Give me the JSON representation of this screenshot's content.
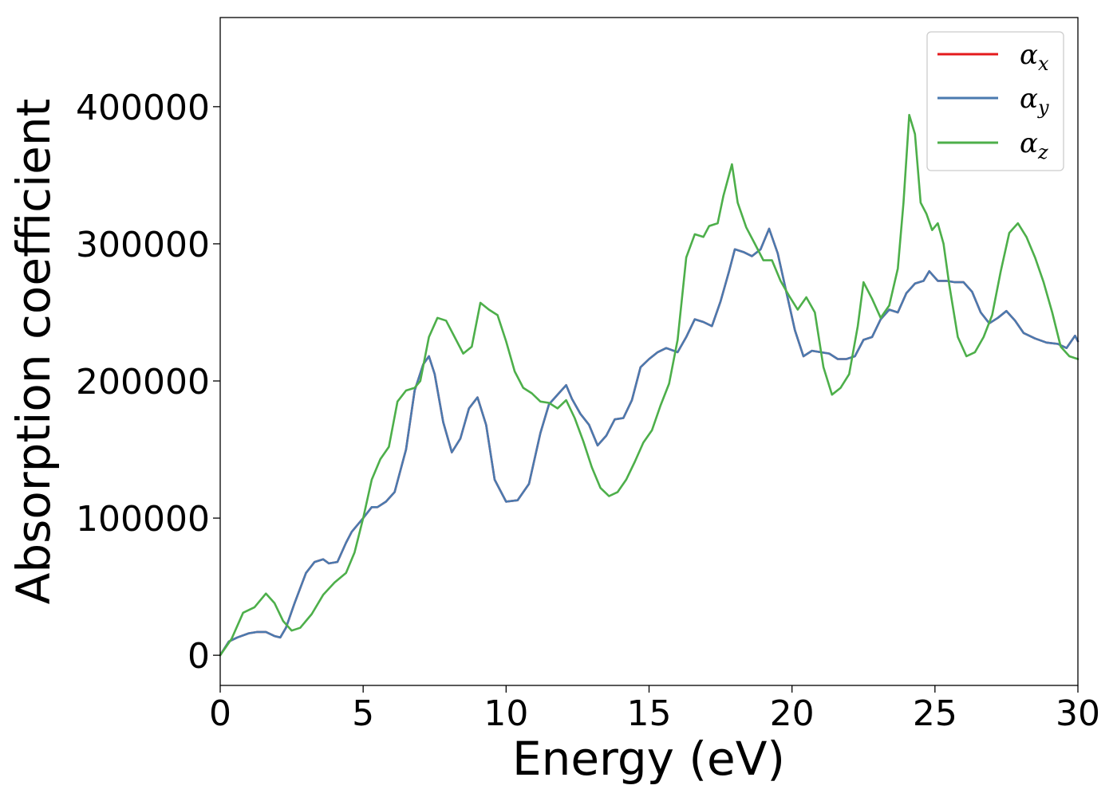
{
  "chart_data": {
    "type": "line",
    "xlabel": "Energy (eV)",
    "ylabel": "Absorption coefficient",
    "xlim": [
      0,
      30
    ],
    "ylim": [
      -22000,
      465000
    ],
    "xticks": [
      0,
      5,
      10,
      15,
      20,
      25,
      30
    ],
    "xtick_labels": [
      "0",
      "5",
      "10",
      "15",
      "20",
      "25",
      "30"
    ],
    "yticks": [
      0,
      100000,
      200000,
      300000,
      400000
    ],
    "ytick_labels": [
      "0",
      "100000",
      "200000",
      "300000",
      "400000"
    ],
    "grid": false,
    "legend_position": "top-right",
    "legend": [
      {
        "symbol": "α",
        "subscript": "x",
        "color": "#e41a1c"
      },
      {
        "symbol": "α",
        "subscript": "y",
        "color": "#4a7aaf"
      },
      {
        "symbol": "α",
        "subscript": "z",
        "color": "#4daf4a"
      }
    ],
    "series": [
      {
        "color": "#e41a1c",
        "x": [
          0,
          0.3,
          0.6,
          1.0,
          1.3,
          1.6,
          1.9,
          2.1,
          2.3,
          2.6,
          3.0,
          3.3,
          3.6,
          3.8,
          4.1,
          4.4,
          4.6,
          5.0,
          5.3,
          5.5,
          5.8,
          6.1,
          6.5,
          6.8,
          7.1,
          7.3,
          7.5,
          7.8,
          8.1,
          8.4,
          8.7,
          9.0,
          9.3,
          9.6,
          10.0,
          10.4,
          10.8,
          11.2,
          11.5,
          11.8,
          12.1,
          12.3,
          12.6,
          12.9,
          13.2,
          13.5,
          13.8,
          14.1,
          14.4,
          14.7,
          15.0,
          15.3,
          15.6,
          16.0,
          16.3,
          16.6,
          16.9,
          17.2,
          17.5,
          17.8,
          18.0,
          18.3,
          18.6,
          18.9,
          19.2,
          19.5,
          19.8,
          20.1,
          20.4,
          20.7,
          21.0,
          21.3,
          21.6,
          21.9,
          22.2,
          22.5,
          22.8,
          23.1,
          23.4,
          23.7,
          24.0,
          24.3,
          24.6,
          24.8,
          25.1,
          25.4,
          25.7,
          26.0,
          26.3,
          26.6,
          26.9,
          27.2,
          27.5,
          27.8,
          28.1,
          28.5,
          28.9,
          29.3,
          29.6,
          29.9,
          30.0
        ],
        "y": [
          0,
          10000,
          13000,
          16000,
          17000,
          17000,
          14000,
          13000,
          20000,
          38000,
          60000,
          68000,
          70000,
          67000,
          68000,
          82000,
          90000,
          100000,
          108000,
          108000,
          112000,
          119000,
          150000,
          193000,
          212000,
          218000,
          205000,
          170000,
          148000,
          158000,
          180000,
          188000,
          168000,
          128000,
          112000,
          113000,
          125000,
          162000,
          183000,
          190000,
          197000,
          187000,
          176000,
          168000,
          153000,
          160000,
          172000,
          173000,
          186000,
          210000,
          216000,
          221000,
          224000,
          221000,
          232000,
          245000,
          243000,
          240000,
          258000,
          280000,
          296000,
          294000,
          291000,
          296000,
          311000,
          293000,
          265000,
          237000,
          218000,
          222000,
          221000,
          220000,
          216000,
          216000,
          218000,
          230000,
          232000,
          245000,
          252000,
          250000,
          264000,
          271000,
          273000,
          280000,
          273000,
          273000,
          272000,
          272000,
          265000,
          250000,
          242000,
          246000,
          251000,
          244000,
          235000,
          231000,
          228000,
          227000,
          224000,
          233000,
          229000
        ]
      },
      {
        "color": "#4a7aaf",
        "x": [
          0,
          0.3,
          0.6,
          1.0,
          1.3,
          1.6,
          1.9,
          2.1,
          2.3,
          2.6,
          3.0,
          3.3,
          3.6,
          3.8,
          4.1,
          4.4,
          4.6,
          5.0,
          5.3,
          5.5,
          5.8,
          6.1,
          6.5,
          6.8,
          7.1,
          7.3,
          7.5,
          7.8,
          8.1,
          8.4,
          8.7,
          9.0,
          9.3,
          9.6,
          10.0,
          10.4,
          10.8,
          11.2,
          11.5,
          11.8,
          12.1,
          12.3,
          12.6,
          12.9,
          13.2,
          13.5,
          13.8,
          14.1,
          14.4,
          14.7,
          15.0,
          15.3,
          15.6,
          16.0,
          16.3,
          16.6,
          16.9,
          17.2,
          17.5,
          17.8,
          18.0,
          18.3,
          18.6,
          18.9,
          19.2,
          19.5,
          19.8,
          20.1,
          20.4,
          20.7,
          21.0,
          21.3,
          21.6,
          21.9,
          22.2,
          22.5,
          22.8,
          23.1,
          23.4,
          23.7,
          24.0,
          24.3,
          24.6,
          24.8,
          25.1,
          25.4,
          25.7,
          26.0,
          26.3,
          26.6,
          26.9,
          27.2,
          27.5,
          27.8,
          28.1,
          28.5,
          28.9,
          29.3,
          29.6,
          29.9,
          30.0
        ],
        "y": [
          0,
          10000,
          13000,
          16000,
          17000,
          17000,
          14000,
          13000,
          20000,
          38000,
          60000,
          68000,
          70000,
          67000,
          68000,
          82000,
          90000,
          100000,
          108000,
          108000,
          112000,
          119000,
          150000,
          193000,
          212000,
          218000,
          205000,
          170000,
          148000,
          158000,
          180000,
          188000,
          168000,
          128000,
          112000,
          113000,
          125000,
          162000,
          183000,
          190000,
          197000,
          187000,
          176000,
          168000,
          153000,
          160000,
          172000,
          173000,
          186000,
          210000,
          216000,
          221000,
          224000,
          221000,
          232000,
          245000,
          243000,
          240000,
          258000,
          280000,
          296000,
          294000,
          291000,
          296000,
          311000,
          293000,
          265000,
          237000,
          218000,
          222000,
          221000,
          220000,
          216000,
          216000,
          218000,
          230000,
          232000,
          245000,
          252000,
          250000,
          264000,
          271000,
          273000,
          280000,
          273000,
          273000,
          272000,
          272000,
          265000,
          250000,
          242000,
          246000,
          251000,
          244000,
          235000,
          231000,
          228000,
          227000,
          224000,
          233000,
          229000
        ]
      },
      {
        "color": "#4daf4a",
        "x": [
          0,
          0.4,
          0.8,
          1.2,
          1.6,
          1.9,
          2.2,
          2.5,
          2.8,
          3.2,
          3.6,
          4.0,
          4.4,
          4.7,
          5.0,
          5.3,
          5.6,
          5.9,
          6.2,
          6.5,
          6.8,
          7.0,
          7.3,
          7.6,
          7.9,
          8.2,
          8.5,
          8.8,
          9.1,
          9.4,
          9.7,
          10.0,
          10.3,
          10.6,
          10.9,
          11.2,
          11.5,
          11.8,
          12.1,
          12.4,
          12.7,
          13.0,
          13.3,
          13.6,
          13.9,
          14.2,
          14.5,
          14.8,
          15.1,
          15.4,
          15.7,
          16.0,
          16.3,
          16.6,
          16.9,
          17.1,
          17.4,
          17.6,
          17.9,
          18.1,
          18.4,
          18.7,
          19.0,
          19.3,
          19.6,
          19.9,
          20.2,
          20.5,
          20.8,
          21.1,
          21.4,
          21.7,
          22.0,
          22.3,
          22.5,
          22.8,
          23.1,
          23.4,
          23.7,
          23.9,
          24.1,
          24.3,
          24.5,
          24.7,
          24.9,
          25.1,
          25.3,
          25.5,
          25.8,
          26.1,
          26.4,
          26.7,
          27.0,
          27.3,
          27.6,
          27.9,
          28.2,
          28.5,
          28.8,
          29.1,
          29.4,
          29.7,
          30.0
        ],
        "y": [
          0,
          12000,
          31000,
          35000,
          45000,
          38000,
          25000,
          18000,
          20000,
          30000,
          44000,
          53000,
          60000,
          75000,
          100000,
          128000,
          143000,
          152000,
          185000,
          193000,
          195000,
          200000,
          232000,
          246000,
          244000,
          232000,
          220000,
          225000,
          257000,
          252000,
          248000,
          229000,
          207000,
          195000,
          191000,
          185000,
          184000,
          180000,
          186000,
          173000,
          156000,
          137000,
          122000,
          116000,
          119000,
          128000,
          141000,
          155000,
          164000,
          182000,
          198000,
          230000,
          290000,
          307000,
          305000,
          313000,
          315000,
          335000,
          358000,
          330000,
          312000,
          300000,
          288000,
          288000,
          273000,
          262000,
          252000,
          261000,
          250000,
          210000,
          190000,
          195000,
          205000,
          240000,
          272000,
          260000,
          246000,
          255000,
          282000,
          330000,
          394000,
          380000,
          330000,
          322000,
          310000,
          315000,
          300000,
          270000,
          232000,
          218000,
          221000,
          232000,
          248000,
          280000,
          308000,
          315000,
          305000,
          290000,
          272000,
          250000,
          225000,
          218000,
          216000
        ]
      }
    ]
  }
}
